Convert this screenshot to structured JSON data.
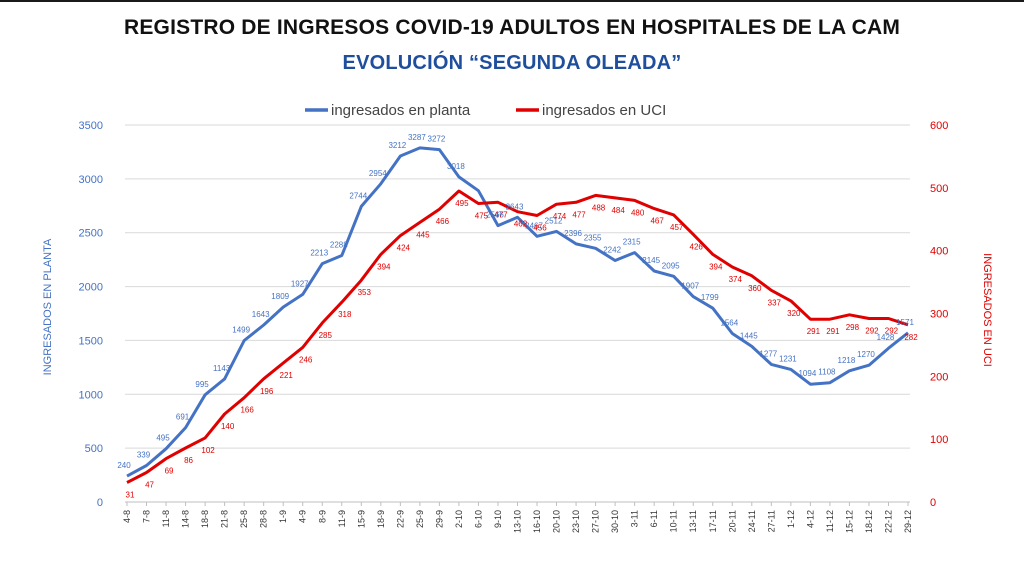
{
  "header": {
    "title": "REGISTRO DE INGRESOS COVID-19 ADULTOS  EN HOSPITALES DE LA CAM",
    "subtitle": "EVOLUCIÓN “SEGUNDA OLEADA”"
  },
  "colors": {
    "planta": "#4472c4",
    "uci": "#e00000",
    "title": "#111111",
    "subtitle": "#1f4e9c",
    "grid": "#d9d9d9"
  },
  "chart_data": {
    "type": "line",
    "title": "REGISTRO DE INGRESOS COVID-19 ADULTOS  EN HOSPITALES DE LA CAM",
    "subtitle": "EVOLUCIÓN “SEGUNDA OLEADA”",
    "x": [
      "4-8",
      "7-8",
      "11-8",
      "14-8",
      "18-8",
      "21-8",
      "25-8",
      "28-8",
      "1-9",
      "4-9",
      "8-9",
      "11-9",
      "15-9",
      "18-9",
      "22-9",
      "25-9",
      "29-9",
      "2-10",
      "6-10",
      "9-10",
      "13-10",
      "16-10",
      "20-10",
      "23-10",
      "27-10",
      "30-10",
      "3-11",
      "6-11",
      "10-11",
      "13-11",
      "17-11",
      "20-11",
      "24-11",
      "27-11",
      "1-12",
      "4-12",
      "11-12",
      "15-12",
      "18-12",
      "22-12",
      "29-12"
    ],
    "ylabel": "INGRESADOS EN PLANTA",
    "y2label": "INGRESADOS EN UCI",
    "ylim": [
      0,
      3500
    ],
    "y2lim": [
      0,
      600
    ],
    "yticks": [
      0,
      500,
      1000,
      1500,
      2000,
      2500,
      3000,
      3500
    ],
    "y2ticks": [
      0,
      100,
      200,
      300,
      400,
      500,
      600
    ],
    "grid": true,
    "legend_position": "top-center",
    "series": [
      {
        "name": "ingresados en planta",
        "axis": "left",
        "values": [
          240,
          339,
          495,
          691,
          995,
          1143,
          1499,
          1643,
          1809,
          1927,
          2213,
          2288,
          2744,
          2954,
          3212,
          3287,
          3272,
          3018,
          2890,
          2566,
          2643,
          2467,
          2512,
          2396,
          2355,
          2242,
          2315,
          2145,
          2095,
          1907,
          1799,
          1564,
          1445,
          1277,
          1231,
          1094,
          1108,
          1218,
          1270,
          1428,
          1571
        ],
        "labels": [
          "240",
          "339",
          "495",
          "691",
          "995",
          "1143",
          "1499",
          "1643",
          "1809",
          "1927",
          "2213",
          "2288",
          "2744",
          "2954",
          "3212",
          "3287",
          "3272",
          "3018",
          "",
          "2566",
          "2643",
          "2467",
          "2512",
          "2396",
          "2355",
          "2242",
          "2315",
          "2145",
          "2095",
          "1907",
          "1799",
          "1564",
          "1445",
          "1277",
          "1231",
          "1094",
          "1108",
          "1218",
          "1270",
          "1428",
          "1571"
        ]
      },
      {
        "name": "ingresados en UCI",
        "axis": "right",
        "values": [
          31,
          47,
          69,
          86,
          102,
          140,
          166,
          196,
          221,
          246,
          285,
          318,
          353,
          394,
          424,
          445,
          466,
          495,
          475,
          477,
          462,
          456,
          474,
          477,
          488,
          484,
          480,
          467,
          457,
          426,
          394,
          374,
          360,
          337,
          320,
          291,
          291,
          298,
          292,
          292,
          282
        ],
        "labels": [
          "31",
          "47",
          "69",
          "86",
          "102",
          "140",
          "166",
          "196",
          "221",
          "246",
          "285",
          "318",
          "353",
          "394",
          "424",
          "445",
          "466",
          "495",
          "475",
          "477",
          "462",
          "456",
          "474",
          "477",
          "488",
          "484",
          "480",
          "467",
          "457",
          "426",
          "394",
          "374",
          "360",
          "337",
          "320",
          "291",
          "291",
          "298",
          "292",
          "292",
          "282"
        ]
      }
    ]
  }
}
